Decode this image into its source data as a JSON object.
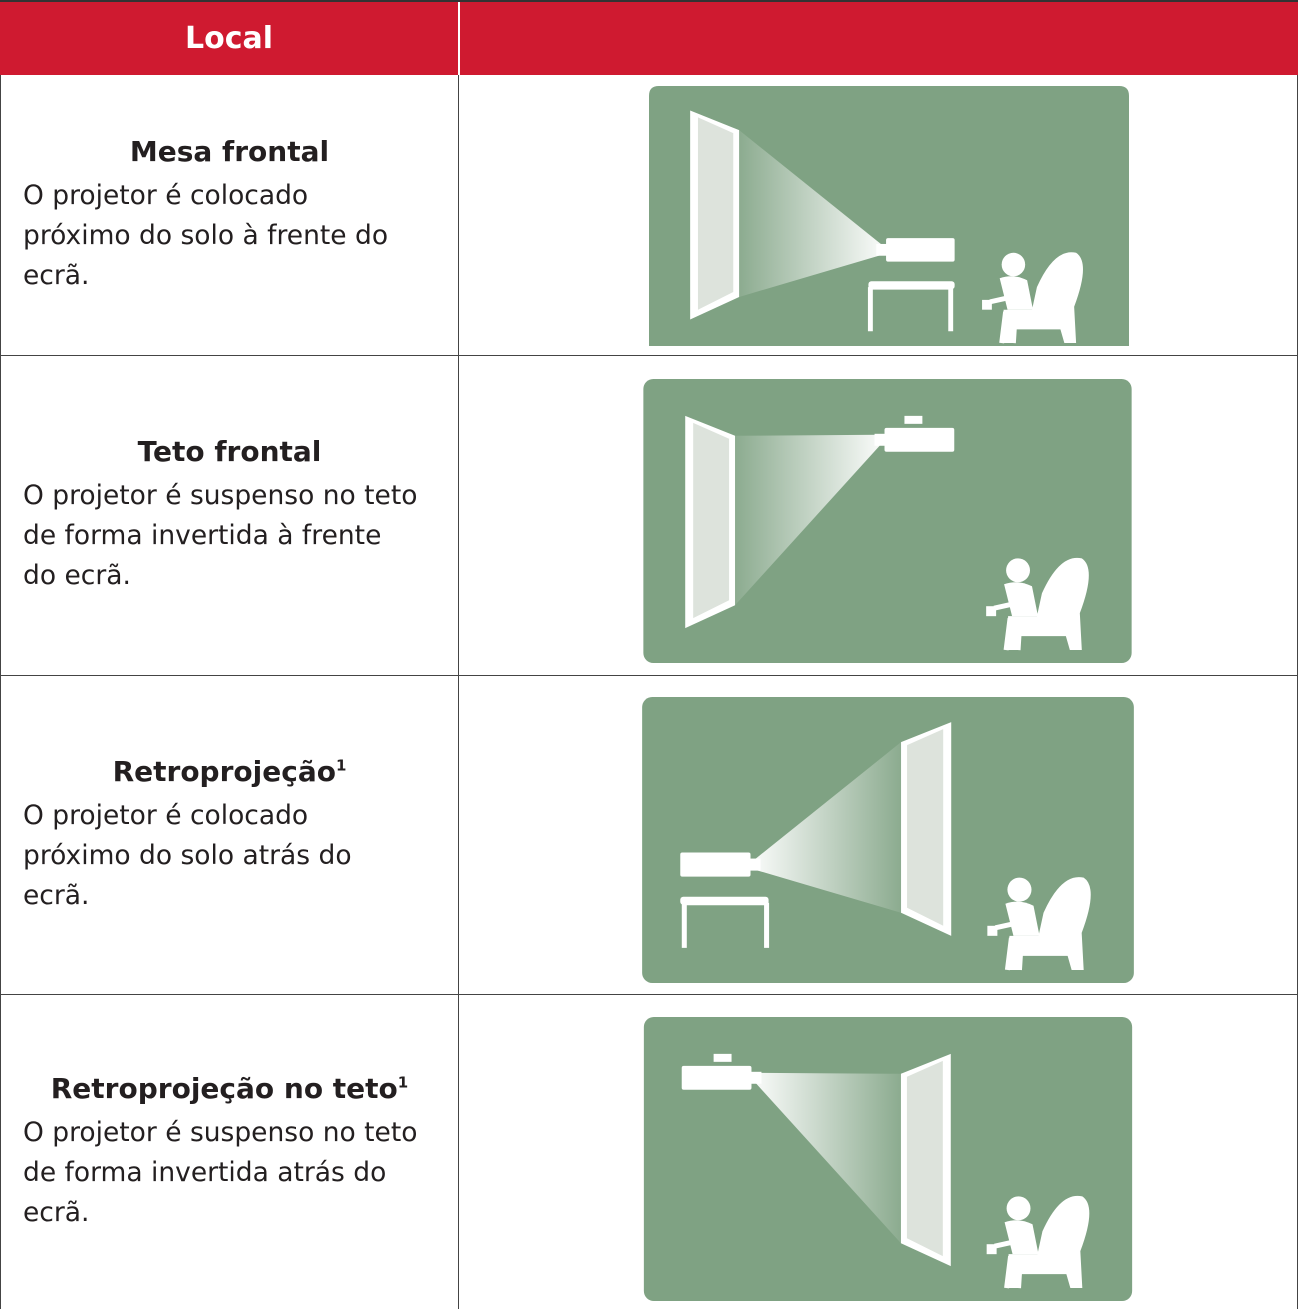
{
  "header": {
    "title": "Local"
  },
  "rows": [
    {
      "title": "Mesa frontal",
      "description": [
        "O projetor é colocado",
        "próximo do solo à frente do",
        "ecrã."
      ]
    },
    {
      "title": "Teto frontal",
      "description": [
        "O projetor é suspenso no teto",
        "de forma invertida à frente",
        "do ecrã."
      ]
    },
    {
      "title": "Retroprojeção",
      "superscript": "1",
      "description": [
        "O projetor é colocado",
        "próximo do solo atrás do",
        "ecrã."
      ]
    },
    {
      "title": "Retroprojeção no teto",
      "superscript": "1",
      "description": [
        "O projetor é suspenso no teto",
        "de forma invertida atrás do",
        "ecrã."
      ]
    }
  ]
}
